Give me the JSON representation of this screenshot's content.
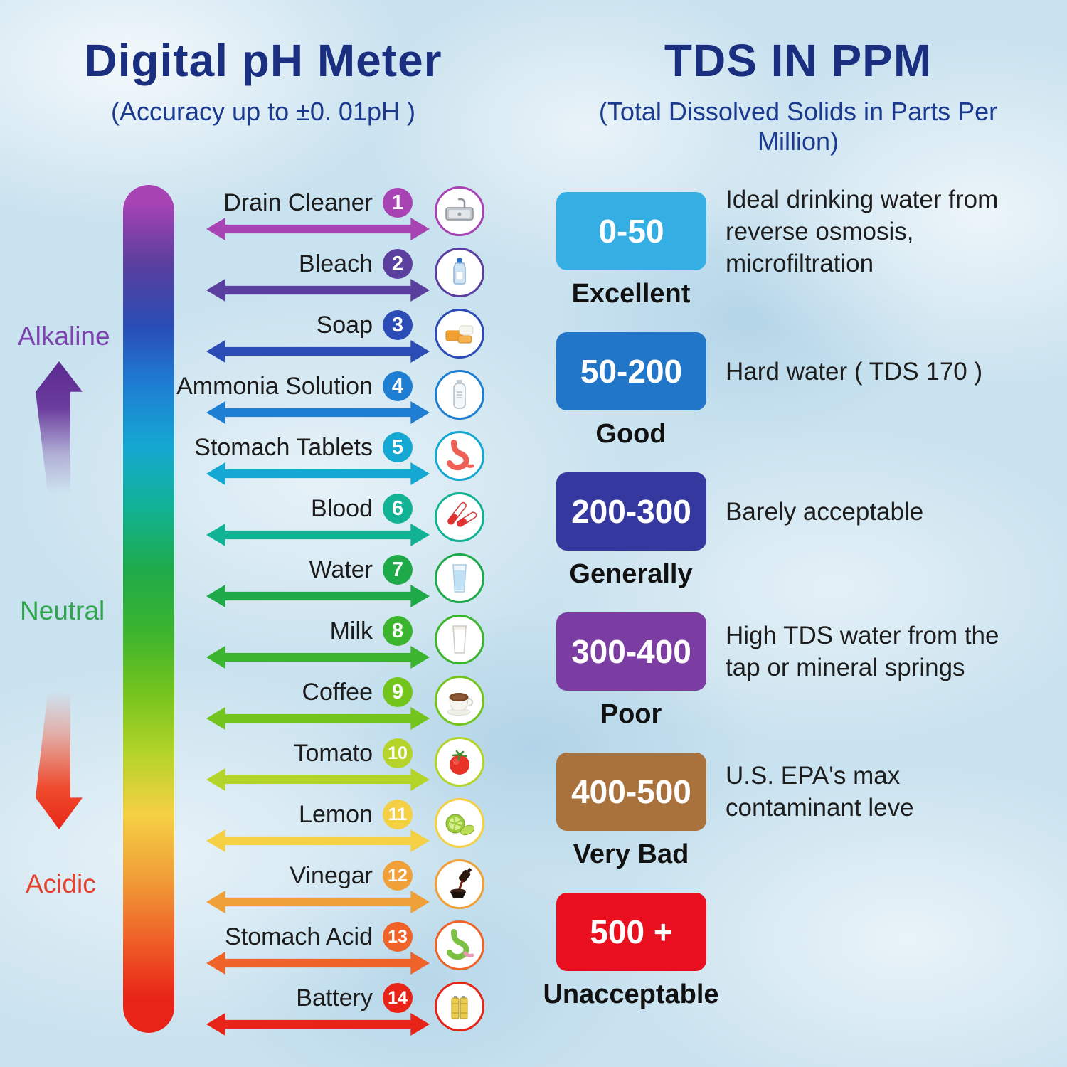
{
  "colors": {
    "title": "#1b2f80",
    "subtitle": "#1b3a8e",
    "alkaline": "#7b44ad",
    "neutral": "#2fa44c",
    "acidic": "#e8402e"
  },
  "page": {
    "left": {
      "title": "Digital pH Meter",
      "subtitle": "(Accuracy up to  ±0. 01pH )",
      "scale_labels": {
        "alkaline": "Alkaline",
        "neutral": "Neutral",
        "acidic": "Acidic"
      },
      "items": [
        {
          "num": "1",
          "label": "Drain Cleaner",
          "color": "#a843b4",
          "icon": "sink-icon"
        },
        {
          "num": "2",
          "label": "Bleach",
          "color": "#5b3f9e",
          "icon": "bleach-bottle-icon"
        },
        {
          "num": "3",
          "label": "Soap",
          "color": "#2a4cb4",
          "icon": "soap-bars-icon"
        },
        {
          "num": "4",
          "label": "Ammonia Solution",
          "color": "#1e7fd2",
          "icon": "ammonia-bottle-icon"
        },
        {
          "num": "5",
          "label": "Stomach Tablets",
          "color": "#14a8d2",
          "icon": "stomach-icon"
        },
        {
          "num": "6",
          "label": "Blood",
          "color": "#12b294",
          "icon": "test-tubes-icon"
        },
        {
          "num": "7",
          "label": "Water",
          "color": "#1faa4a",
          "icon": "water-glass-icon"
        },
        {
          "num": "8",
          "label": "Milk",
          "color": "#3bb42e",
          "icon": "milk-glass-icon"
        },
        {
          "num": "9",
          "label": "Coffee",
          "color": "#74c41e",
          "icon": "coffee-cup-icon"
        },
        {
          "num": "10",
          "label": "Tomato",
          "color": "#b5d42a",
          "icon": "tomato-icon"
        },
        {
          "num": "11",
          "label": "Lemon",
          "color": "#f5d044",
          "icon": "lemon-icon"
        },
        {
          "num": "12",
          "label": "Vinegar",
          "color": "#f0a038",
          "icon": "vinegar-pour-icon"
        },
        {
          "num": "13",
          "label": "Stomach Acid",
          "color": "#ef6228",
          "icon": "stomach-acid-icon"
        },
        {
          "num": "14",
          "label": "Battery",
          "color": "#e82418",
          "icon": "battery-icon"
        }
      ]
    },
    "right": {
      "title": "TDS IN PPM",
      "subtitle": "(Total Dissolved Solids in Parts Per Million)",
      "entries": [
        {
          "range": "0-50",
          "rating": "Excellent",
          "color": "#35aee3",
          "description_lines": [
            "Ideal drinking water from",
            "reverse osmosis,",
            "microfiltration"
          ]
        },
        {
          "range": "50-200",
          "rating": "Good",
          "color": "#2176c8",
          "description_lines": [
            "Hard water ( TDS 170 )"
          ]
        },
        {
          "range": "200-300",
          "rating": "Generally",
          "color": "#35389e",
          "description_lines": [
            "Barely acceptable"
          ]
        },
        {
          "range": "300-400",
          "rating": "Poor",
          "color": "#7b3da1",
          "description_lines": [
            "High TDS water from the",
            "tap or mineral springs"
          ]
        },
        {
          "range": "400-500",
          "rating": "Very Bad",
          "color": "#a9713b",
          "description_lines": [
            "U.S. EPA's max",
            "contaminant leve"
          ]
        },
        {
          "range": "500 +",
          "rating": "Unacceptable",
          "color": "#e90f1e",
          "description_lines": []
        }
      ]
    }
  }
}
